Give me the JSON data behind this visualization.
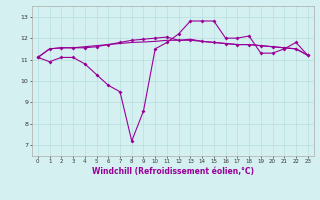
{
  "x": [
    0,
    1,
    2,
    3,
    4,
    5,
    6,
    7,
    8,
    9,
    10,
    11,
    12,
    13,
    14,
    15,
    16,
    17,
    18,
    19,
    20,
    21,
    22,
    23
  ],
  "line1": [
    11.1,
    10.9,
    11.1,
    11.1,
    10.8,
    10.3,
    9.8,
    9.5,
    7.2,
    8.6,
    11.5,
    11.8,
    12.2,
    12.8,
    12.8,
    12.8,
    12.0,
    12.0,
    12.1,
    11.3,
    11.3,
    11.5,
    11.8,
    11.2
  ],
  "line2": [
    11.1,
    11.5,
    11.55,
    11.55,
    11.55,
    11.6,
    11.7,
    11.8,
    11.9,
    11.95,
    12.0,
    12.05,
    11.9,
    11.9,
    11.85,
    11.8,
    11.75,
    11.7,
    11.7,
    11.65,
    11.6,
    11.55,
    11.5,
    11.2
  ],
  "line3": [
    11.1,
    11.5,
    11.55,
    11.55,
    11.6,
    11.65,
    11.7,
    11.75,
    11.8,
    11.82,
    11.85,
    11.9,
    11.9,
    11.95,
    11.85,
    11.8,
    11.75,
    11.7,
    11.7,
    11.65,
    11.6,
    11.55,
    11.5,
    11.2
  ],
  "line_color": "#990099",
  "bg_color": "#d5f0f0",
  "grid_color": "#b8e0e0",
  "xlabel": "Windchill (Refroidissement éolien,°C)",
  "ylim": [
    6.5,
    13.5
  ],
  "xlim": [
    -0.5,
    23.5
  ],
  "yticks": [
    7,
    8,
    9,
    10,
    11,
    12,
    13
  ],
  "xticks": [
    0,
    1,
    2,
    3,
    4,
    5,
    6,
    7,
    8,
    9,
    10,
    11,
    12,
    13,
    14,
    15,
    16,
    17,
    18,
    19,
    20,
    21,
    22,
    23
  ],
  "tick_fontsize": 4.0,
  "xlabel_fontsize": 5.5
}
